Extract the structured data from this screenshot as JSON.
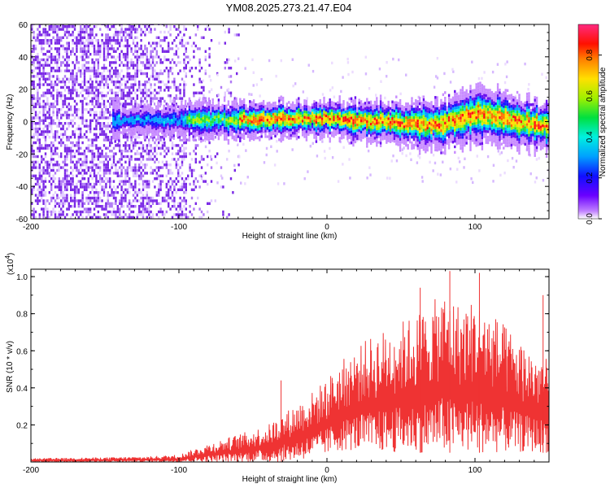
{
  "title": "YM08.2025.273.21.47.E04",
  "chart_data": [
    {
      "type": "heatmap",
      "title": "YM08.2025.273.21.47.E04",
      "xlabel": "Height of straight line (km)",
      "ylabel": "Frequency (Hz)",
      "xlim": [
        -200,
        150
      ],
      "ylim": [
        -60,
        60
      ],
      "x_ticks": [
        -200,
        -100,
        0,
        100
      ],
      "y_ticks": [
        -60,
        -40,
        -20,
        0,
        20,
        40,
        60
      ],
      "colorbar": {
        "label": "Normalized spectral amplitude",
        "range": [
          0,
          0.95
        ],
        "ticks": [
          0.0,
          0.2,
          0.4,
          0.6,
          0.8
        ]
      },
      "description_points": [
        {
          "height_km": -200,
          "center_hz": 0,
          "noise_extent": "full band scattered"
        },
        {
          "height_km": -140,
          "center_hz": 0,
          "band_halfwidth_hz": 4
        },
        {
          "height_km": -85,
          "center_hz": 0,
          "band_halfwidth_hz": 6
        },
        {
          "height_km": 0,
          "center_hz": 1,
          "band_halfwidth_hz": 6
        },
        {
          "height_km": 75,
          "center_hz": -3,
          "band_halfwidth_hz": 8
        },
        {
          "height_km": 100,
          "center_hz": 4,
          "band_halfwidth_hz": 9
        },
        {
          "height_km": 150,
          "center_hz": -4,
          "band_halfwidth_hz": 8
        }
      ]
    },
    {
      "type": "line",
      "xlabel": "Height of straight line (km)",
      "ylabel": "SNR (10 * v/v)",
      "scale_label": "(x10",
      "scale_exp": "4",
      "scale_close": ")",
      "xlim": [
        -200,
        150
      ],
      "ylim": [
        0,
        1.04
      ],
      "x_ticks": [
        -200,
        -100,
        0,
        100
      ],
      "y_ticks": [
        0.2,
        0.4,
        0.6,
        0.8,
        1.0
      ],
      "series_color": "#ef3333",
      "envelope": {
        "x": [
          -200,
          -150,
          -120,
          -100,
          -90,
          -80,
          -60,
          -40,
          -30,
          -20,
          -10,
          0,
          10,
          20,
          30,
          40,
          50,
          60,
          70,
          80,
          90,
          100,
          110,
          120,
          130,
          140,
          150
        ],
        "y_max": [
          0.02,
          0.025,
          0.03,
          0.04,
          0.07,
          0.1,
          0.15,
          0.2,
          0.26,
          0.32,
          0.38,
          0.45,
          0.55,
          0.62,
          0.68,
          0.72,
          0.76,
          0.8,
          0.86,
          0.92,
          0.85,
          0.88,
          0.82,
          0.74,
          0.66,
          0.6,
          0.55
        ],
        "y_min": [
          0.0,
          0.0,
          0.0,
          0.0,
          0.0,
          0.0,
          0.0,
          0.0,
          0.0,
          0.01,
          0.02,
          0.04,
          0.06,
          0.06,
          0.05,
          0.05,
          0.05,
          0.05,
          0.05,
          0.05,
          0.05,
          0.05,
          0.05,
          0.05,
          0.05,
          0.05,
          0.05
        ]
      },
      "spikes": [
        {
          "x": -31,
          "y": 0.44
        },
        {
          "x": 63,
          "y": 0.94
        },
        {
          "x": 83,
          "y": 1.03
        },
        {
          "x": 103,
          "y": 1.02
        },
        {
          "x": 146,
          "y": 0.9
        }
      ]
    }
  ],
  "colors": {
    "cmap": [
      "#ffffff",
      "#e0d0ff",
      "#8030e8",
      "#1010d0",
      "#0090ff",
      "#00e0e0",
      "#40e040",
      "#c0e000",
      "#ffc000",
      "#ff3000",
      "#ff2080"
    ]
  }
}
